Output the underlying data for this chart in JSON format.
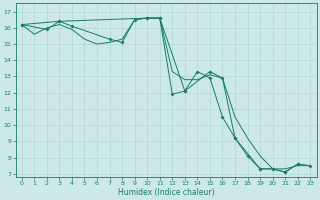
{
  "xlabel": "Humidex (Indice chaleur)",
  "background_color": "#cce9e7",
  "grid_color": "#aad4d0",
  "line_color": "#1a7a6e",
  "xlim": [
    -0.5,
    23.5
  ],
  "ylim": [
    6.8,
    17.5
  ],
  "yticks": [
    7,
    8,
    9,
    10,
    11,
    12,
    13,
    14,
    15,
    16,
    17
  ],
  "xticks": [
    0,
    1,
    2,
    3,
    4,
    5,
    6,
    7,
    8,
    9,
    10,
    11,
    12,
    13,
    14,
    15,
    16,
    17,
    18,
    19,
    20,
    21,
    22,
    23
  ],
  "line1_x": [
    0,
    1,
    2,
    3,
    4,
    5,
    6,
    7,
    8,
    9,
    10,
    11,
    12,
    13,
    14,
    15,
    16,
    17,
    18,
    19,
    20,
    21,
    22,
    23
  ],
  "line1_y": [
    16.2,
    15.6,
    16.0,
    16.2,
    15.9,
    15.3,
    15.0,
    15.1,
    15.3,
    16.5,
    16.6,
    16.6,
    13.3,
    12.8,
    12.8,
    13.1,
    12.9,
    10.5,
    9.2,
    8.1,
    7.3,
    7.3,
    7.5,
    7.5
  ],
  "line2_x": [
    0,
    2,
    3,
    4,
    7,
    8,
    9,
    10,
    11,
    12,
    13,
    14,
    15,
    16,
    17,
    18,
    19,
    20,
    21,
    22,
    23
  ],
  "line2_y": [
    16.2,
    15.9,
    16.4,
    16.1,
    15.3,
    15.1,
    16.5,
    16.6,
    16.6,
    11.9,
    12.1,
    13.3,
    12.9,
    10.5,
    9.2,
    8.1,
    7.3,
    7.3,
    7.1,
    7.6,
    7.5
  ],
  "line3_x": [
    0,
    3,
    10,
    11,
    13,
    15,
    16,
    17,
    19,
    20,
    21,
    22
  ],
  "line3_y": [
    16.2,
    16.4,
    16.6,
    16.6,
    12.1,
    13.3,
    12.9,
    9.2,
    7.3,
    7.3,
    7.1,
    7.6
  ]
}
